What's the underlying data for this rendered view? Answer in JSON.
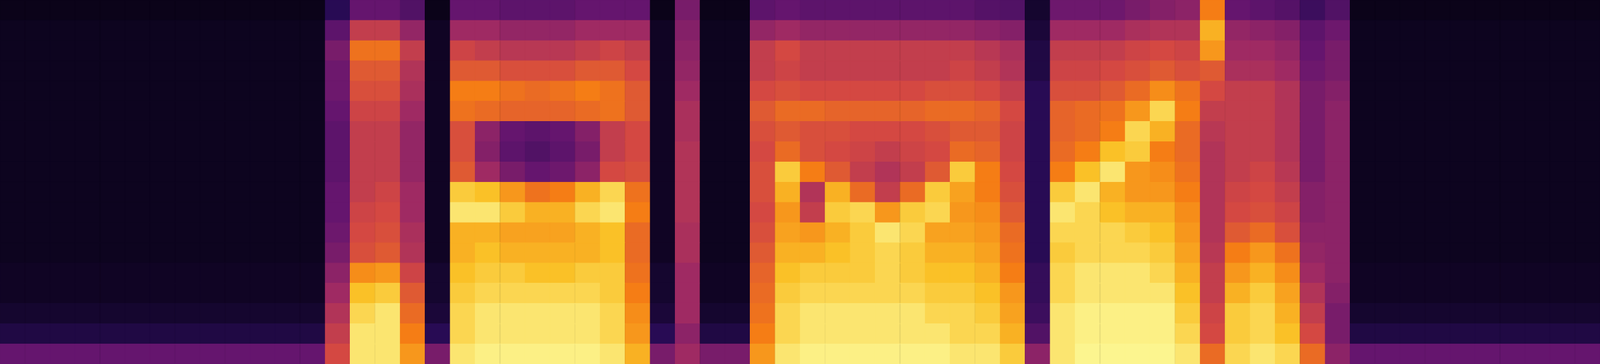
{
  "chart_data": {
    "type": "heatmap",
    "tick_labels": false,
    "grid": false,
    "color_range": [
      0,
      100
    ],
    "cells": [
      [
        30,
        30,
        30,
        30,
        30,
        30,
        30,
        30,
        30,
        30,
        30,
        30,
        30,
        60,
        95,
        95,
        80,
        35,
        95,
        97,
        97,
        97,
        97,
        97,
        95,
        85,
        35,
        45,
        35,
        35,
        80,
        95,
        97,
        97,
        97,
        97,
        97,
        97,
        95,
        95,
        90,
        40,
        95,
        98,
        98,
        98,
        98,
        95,
        70,
        92,
        95,
        92,
        70,
        40,
        30,
        30,
        30,
        30,
        30,
        30,
        30,
        30,
        30,
        30
      ],
      [
        12,
        12,
        12,
        12,
        12,
        12,
        12,
        12,
        12,
        12,
        12,
        12,
        12,
        55,
        95,
        95,
        75,
        15,
        92,
        95,
        95,
        95,
        95,
        95,
        92,
        80,
        15,
        40,
        12,
        12,
        75,
        92,
        95,
        95,
        95,
        95,
        95,
        95,
        92,
        92,
        85,
        25,
        95,
        97,
        97,
        97,
        97,
        92,
        60,
        90,
        92,
        88,
        60,
        35,
        12,
        12,
        12,
        12,
        12,
        12,
        12,
        12,
        12,
        12
      ],
      [
        8,
        8,
        8,
        8,
        8,
        8,
        8,
        8,
        8,
        8,
        8,
        8,
        8,
        50,
        92,
        95,
        70,
        10,
        92,
        95,
        95,
        95,
        95,
        95,
        92,
        78,
        10,
        45,
        8,
        8,
        72,
        92,
        95,
        95,
        95,
        95,
        95,
        92,
        92,
        90,
        82,
        20,
        95,
        97,
        97,
        97,
        97,
        90,
        58,
        90,
        92,
        85,
        55,
        35,
        8,
        8,
        8,
        8,
        8,
        8,
        8,
        8,
        8,
        8
      ],
      [
        6,
        6,
        6,
        6,
        6,
        6,
        6,
        6,
        6,
        6,
        6,
        6,
        6,
        45,
        88,
        90,
        65,
        8,
        90,
        92,
        92,
        92,
        92,
        92,
        90,
        75,
        8,
        45,
        6,
        6,
        70,
        90,
        92,
        92,
        92,
        92,
        92,
        90,
        90,
        88,
        80,
        18,
        92,
        95,
        95,
        95,
        95,
        88,
        55,
        85,
        90,
        82,
        50,
        38,
        6,
        6,
        6,
        6,
        6,
        6,
        6,
        6,
        6,
        6
      ],
      [
        6,
        6,
        6,
        6,
        6,
        6,
        6,
        6,
        6,
        6,
        6,
        6,
        6,
        40,
        78,
        80,
        58,
        8,
        88,
        90,
        90,
        88,
        88,
        90,
        90,
        72,
        8,
        45,
        6,
        6,
        68,
        88,
        90,
        90,
        90,
        92,
        90,
        88,
        88,
        85,
        75,
        18,
        92,
        95,
        95,
        95,
        92,
        85,
        55,
        80,
        85,
        78,
        45,
        40,
        6,
        6,
        6,
        6,
        6,
        6,
        6,
        6,
        6,
        6
      ],
      [
        5,
        5,
        5,
        5,
        5,
        5,
        5,
        5,
        5,
        5,
        5,
        5,
        5,
        35,
        62,
        65,
        50,
        6,
        85,
        88,
        85,
        85,
        85,
        85,
        88,
        70,
        6,
        48,
        5,
        5,
        65,
        85,
        85,
        88,
        90,
        92,
        90,
        85,
        85,
        82,
        72,
        15,
        90,
        92,
        92,
        92,
        90,
        82,
        52,
        75,
        80,
        72,
        42,
        40,
        5,
        5,
        5,
        5,
        5,
        5,
        5,
        5,
        5,
        5
      ],
      [
        5,
        5,
        5,
        5,
        5,
        5,
        5,
        5,
        5,
        5,
        5,
        5,
        5,
        32,
        60,
        62,
        48,
        6,
        85,
        85,
        82,
        82,
        82,
        85,
        88,
        70,
        6,
        48,
        5,
        5,
        62,
        82,
        80,
        85,
        90,
        95,
        92,
        82,
        82,
        80,
        70,
        15,
        92,
        92,
        92,
        90,
        88,
        80,
        50,
        65,
        70,
        62,
        40,
        40,
        5,
        5,
        5,
        5,
        5,
        5,
        5,
        5,
        5,
        5
      ],
      [
        5,
        5,
        5,
        5,
        5,
        5,
        5,
        5,
        5,
        5,
        5,
        5,
        5,
        30,
        58,
        60,
        45,
        6,
        95,
        95,
        90,
        85,
        85,
        92,
        95,
        75,
        6,
        50,
        5,
        5,
        60,
        80,
        55,
        90,
        92,
        80,
        90,
        92,
        80,
        78,
        65,
        15,
        95,
        92,
        88,
        85,
        85,
        78,
        50,
        60,
        62,
        58,
        38,
        40,
        5,
        5,
        5,
        5,
        5,
        5,
        5,
        5,
        5,
        5
      ],
      [
        5,
        5,
        5,
        5,
        5,
        5,
        5,
        5,
        5,
        5,
        5,
        5,
        5,
        30,
        55,
        58,
        45,
        6,
        90,
        88,
        80,
        72,
        75,
        85,
        92,
        72,
        6,
        50,
        5,
        5,
        62,
        85,
        50,
        85,
        70,
        55,
        70,
        90,
        82,
        75,
        62,
        15,
        90,
        95,
        85,
        80,
        80,
        75,
        50,
        58,
        60,
        55,
        38,
        40,
        5,
        5,
        5,
        5,
        5,
        5,
        5,
        5,
        5,
        5
      ],
      [
        5,
        5,
        5,
        5,
        5,
        5,
        5,
        5,
        5,
        5,
        5,
        5,
        5,
        28,
        55,
        55,
        42,
        6,
        65,
        45,
        35,
        30,
        32,
        40,
        60,
        62,
        6,
        50,
        5,
        5,
        62,
        90,
        75,
        65,
        55,
        50,
        55,
        65,
        90,
        75,
        60,
        15,
        75,
        88,
        95,
        80,
        78,
        72,
        50,
        55,
        58,
        52,
        35,
        40,
        5,
        5,
        5,
        5,
        5,
        5,
        5,
        5,
        5,
        5
      ],
      [
        5,
        5,
        5,
        5,
        5,
        5,
        5,
        5,
        5,
        5,
        5,
        5,
        5,
        28,
        55,
        55,
        42,
        6,
        62,
        38,
        28,
        25,
        28,
        35,
        55,
        60,
        6,
        50,
        5,
        5,
        60,
        70,
        62,
        60,
        58,
        55,
        58,
        60,
        70,
        68,
        58,
        15,
        70,
        75,
        88,
        90,
        75,
        70,
        50,
        55,
        55,
        50,
        35,
        40,
        5,
        5,
        5,
        5,
        5,
        5,
        5,
        5,
        5,
        5
      ],
      [
        5,
        5,
        5,
        5,
        5,
        5,
        5,
        5,
        5,
        5,
        5,
        5,
        5,
        28,
        55,
        55,
        42,
        6,
        62,
        40,
        30,
        28,
        30,
        38,
        55,
        60,
        6,
        48,
        5,
        5,
        62,
        65,
        62,
        62,
        60,
        60,
        60,
        62,
        65,
        65,
        58,
        15,
        68,
        70,
        75,
        92,
        85,
        70,
        52,
        55,
        55,
        50,
        35,
        40,
        5,
        5,
        5,
        5,
        5,
        5,
        5,
        5,
        5,
        5
      ],
      [
        5,
        5,
        5,
        5,
        5,
        5,
        5,
        5,
        5,
        5,
        5,
        5,
        5,
        30,
        58,
        58,
        45,
        6,
        72,
        70,
        68,
        68,
        68,
        70,
        72,
        65,
        6,
        48,
        5,
        5,
        65,
        70,
        70,
        68,
        68,
        68,
        68,
        70,
        70,
        68,
        60,
        15,
        68,
        70,
        72,
        80,
        92,
        75,
        55,
        55,
        55,
        50,
        35,
        40,
        5,
        5,
        5,
        5,
        5,
        5,
        5,
        5,
        5,
        5
      ],
      [
        5,
        5,
        5,
        5,
        5,
        5,
        5,
        5,
        5,
        5,
        5,
        5,
        5,
        32,
        62,
        62,
        48,
        6,
        75,
        75,
        72,
        70,
        72,
        75,
        72,
        65,
        6,
        45,
        5,
        5,
        60,
        62,
        60,
        60,
        60,
        60,
        60,
        62,
        62,
        60,
        55,
        15,
        62,
        62,
        65,
        70,
        78,
        72,
        60,
        55,
        55,
        50,
        35,
        38,
        5,
        5,
        5,
        5,
        5,
        5,
        5,
        5,
        5,
        5
      ],
      [
        5,
        5,
        5,
        5,
        5,
        5,
        5,
        5,
        5,
        5,
        5,
        5,
        5,
        32,
        65,
        65,
        50,
        6,
        65,
        65,
        62,
        62,
        62,
        65,
        65,
        60,
        6,
        42,
        5,
        5,
        55,
        58,
        55,
        55,
        55,
        55,
        55,
        55,
        58,
        55,
        50,
        12,
        58,
        58,
        60,
        62,
        65,
        62,
        65,
        48,
        48,
        45,
        32,
        35,
        5,
        5,
        5,
        5,
        5,
        5,
        5,
        5,
        5,
        5
      ],
      [
        5,
        5,
        5,
        5,
        5,
        5,
        5,
        5,
        5,
        5,
        5,
        5,
        5,
        35,
        72,
        72,
        55,
        6,
        58,
        55,
        52,
        52,
        52,
        55,
        58,
        55,
        6,
        40,
        5,
        5,
        55,
        60,
        55,
        55,
        55,
        55,
        55,
        55,
        55,
        52,
        48,
        12,
        55,
        55,
        55,
        58,
        60,
        58,
        80,
        45,
        45,
        42,
        30,
        35,
        5,
        5,
        5,
        5,
        5,
        5,
        5,
        5,
        5,
        5
      ],
      [
        5,
        5,
        5,
        5,
        5,
        5,
        5,
        5,
        5,
        5,
        5,
        5,
        5,
        28,
        55,
        55,
        42,
        6,
        45,
        45,
        42,
        42,
        42,
        45,
        45,
        45,
        6,
        38,
        5,
        5,
        42,
        45,
        42,
        42,
        42,
        42,
        42,
        42,
        42,
        40,
        38,
        10,
        45,
        45,
        45,
        48,
        50,
        50,
        85,
        42,
        40,
        38,
        28,
        32,
        5,
        5,
        5,
        5,
        5,
        5,
        5,
        5,
        5,
        5
      ],
      [
        4,
        4,
        4,
        4,
        4,
        4,
        4,
        4,
        4,
        4,
        4,
        4,
        4,
        15,
        30,
        30,
        25,
        4,
        30,
        30,
        28,
        28,
        28,
        30,
        30,
        30,
        4,
        35,
        4,
        4,
        28,
        30,
        28,
        28,
        28,
        28,
        28,
        28,
        28,
        26,
        25,
        8,
        32,
        32,
        32,
        35,
        38,
        40,
        75,
        30,
        28,
        26,
        20,
        25,
        4,
        4,
        4,
        4,
        4,
        4,
        4,
        4,
        4,
        4
      ]
    ]
  }
}
